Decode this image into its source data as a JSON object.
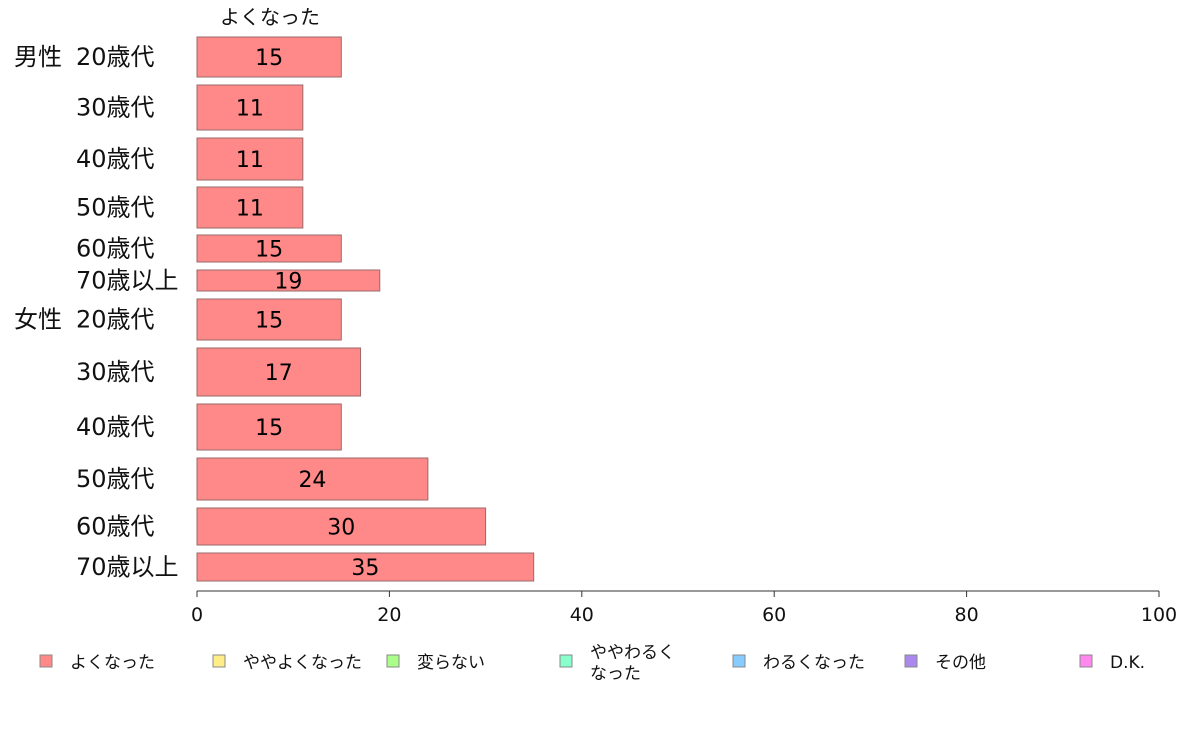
{
  "chart_data": {
    "type": "bar",
    "orientation": "horizontal",
    "column_header": "よくなった",
    "groups": [
      {
        "label": "男性",
        "rows": [
          "20歳代",
          "30歳代",
          "40歳代",
          "50歳代",
          "60歳代",
          "70歳以上"
        ]
      },
      {
        "label": "女性",
        "rows": [
          "20歳代",
          "30歳代",
          "40歳代",
          "50歳代",
          "60歳代",
          "70歳以上"
        ]
      }
    ],
    "series": [
      {
        "name": "よくなった",
        "color": "#ff8888",
        "values": [
          15,
          11,
          11,
          11,
          15,
          19,
          15,
          17,
          15,
          24,
          30,
          35
        ]
      }
    ],
    "data_labels": [
      "15",
      "11",
      "11",
      "11",
      "15",
      "19",
      "15",
      "17",
      "15",
      "24",
      "30",
      "35"
    ],
    "xlim": [
      0,
      100
    ],
    "xticks": [
      "0",
      "20",
      "40",
      "60",
      "80",
      "100"
    ],
    "grid": false,
    "legend_position": "bottom",
    "legend": [
      {
        "label": "よくなった",
        "color": "#ff8888"
      },
      {
        "label": "ややよくなった",
        "color": "#ffee88"
      },
      {
        "label": "変らない",
        "color": "#aaff88"
      },
      {
        "label": "ややわるく\nなった",
        "color": "#88ffcc"
      },
      {
        "label": "わるくなった",
        "color": "#88ccff"
      },
      {
        "label": "その他",
        "color": "#aa88ee"
      },
      {
        "label": "D.K.",
        "color": "#ff88ee"
      }
    ]
  }
}
